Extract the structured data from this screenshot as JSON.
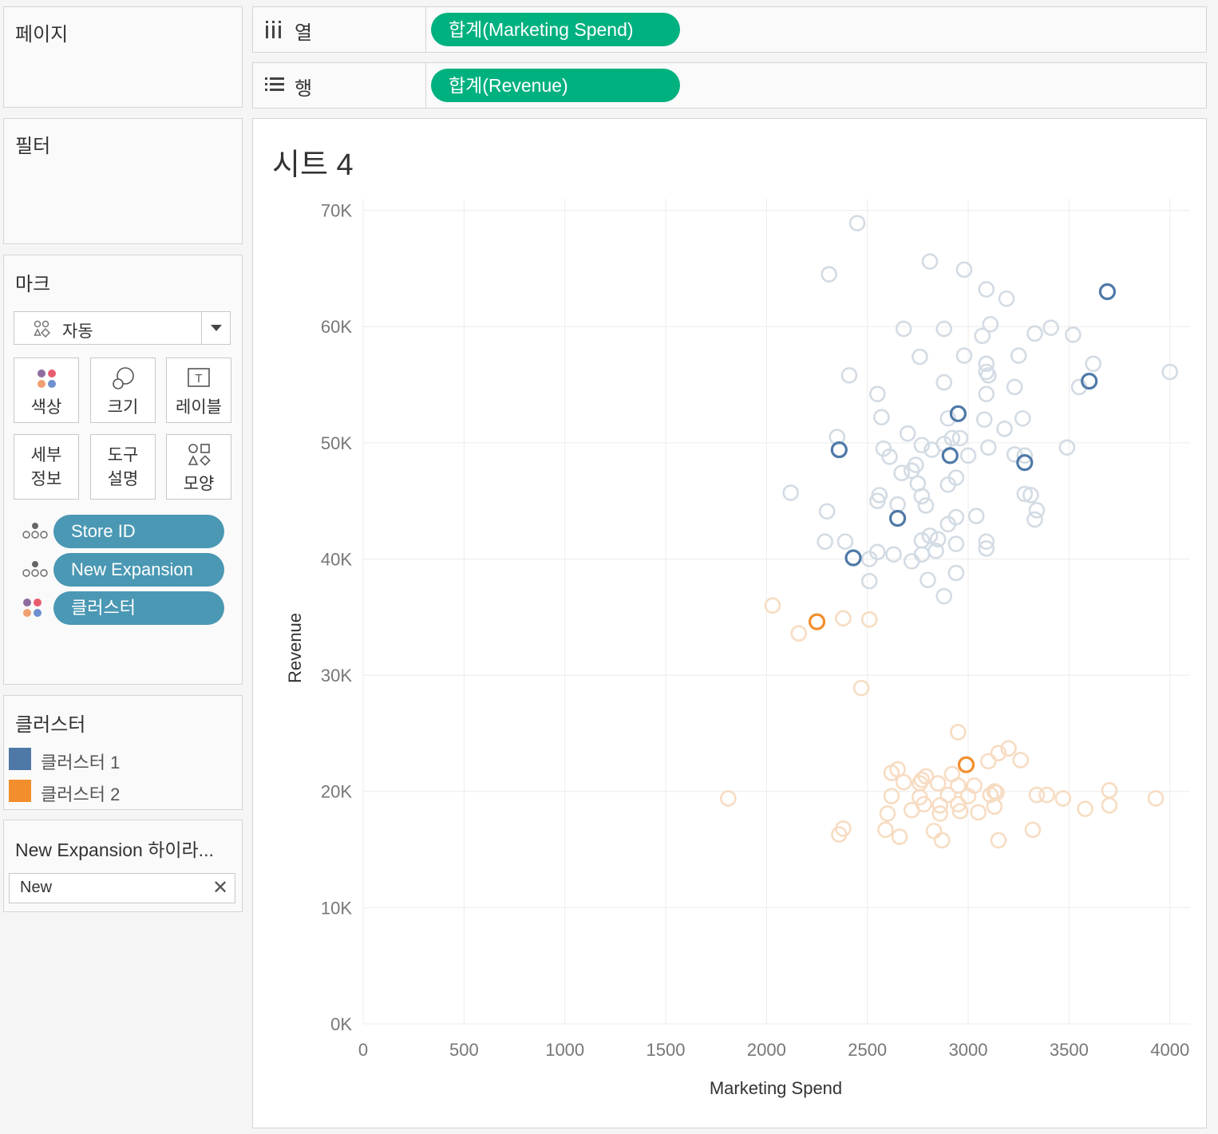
{
  "panels": {
    "pages_title": "페이지",
    "filters_title": "필터",
    "marks_title": "마크"
  },
  "shelves": {
    "columns_label": "열",
    "columns_pill": "합계(Marketing Spend)",
    "rows_label": "행",
    "rows_pill": "합계(Revenue)"
  },
  "marks": {
    "mark_type": "자동",
    "buttons": {
      "color": "색상",
      "size": "크기",
      "label": "레이블",
      "detail_line1": "세부",
      "detail_line2": "정보",
      "tooltip_line1": "도구",
      "tooltip_line2": "설명",
      "shape": "모양"
    },
    "fields": [
      {
        "name": "Store ID",
        "icon": "detail-icon"
      },
      {
        "name": "New Expansion",
        "icon": "detail-icon"
      },
      {
        "name": "클러스터",
        "icon": "color-icon"
      }
    ]
  },
  "legend": {
    "title": "클러스터",
    "items": [
      {
        "label": "클러스터 1",
        "color": "#4e79a7"
      },
      {
        "label": "클러스터 2",
        "color": "#f28e2b"
      }
    ]
  },
  "highlighter": {
    "title": "New Expansion 하이라...",
    "value": "New"
  },
  "sheet": {
    "title": "시트 4"
  },
  "colors": {
    "pill_green": "#00b180",
    "pill_blue": "#4a98b4",
    "cluster1": "#4e79a7",
    "cluster2": "#f28e2b",
    "cluster1_faded": "#d3dbe4",
    "cluster2_faded": "#f7dcc2"
  },
  "chart_data": {
    "type": "scatter",
    "xlabel": "Marketing Spend",
    "ylabel": "Revenue",
    "xlim": [
      0,
      4100
    ],
    "ylim": [
      0,
      71000
    ],
    "x_ticks": [
      0,
      500,
      1000,
      1500,
      2000,
      2500,
      3000,
      3500,
      4000
    ],
    "x_tick_labels": [
      "0",
      "500",
      "1000",
      "1500",
      "2000",
      "2500",
      "3000",
      "3500",
      "4000"
    ],
    "y_ticks": [
      0,
      10000,
      20000,
      30000,
      40000,
      50000,
      60000,
      70000
    ],
    "y_tick_labels": [
      "0K",
      "10K",
      "20K",
      "30K",
      "40K",
      "50K",
      "60K",
      "70K"
    ],
    "grid": true,
    "marker": "open-circle",
    "series": [
      {
        "name": "클러스터 1",
        "color": "#4e79a7",
        "highlighted": [
          [
            3690,
            63000
          ],
          [
            3600,
            55300
          ],
          [
            2950,
            52500
          ],
          [
            2360,
            49400
          ],
          [
            2910,
            48900
          ],
          [
            3280,
            48300
          ],
          [
            2650,
            43500
          ],
          [
            2430,
            40100
          ]
        ],
        "points": [
          [
            2450,
            68900
          ],
          [
            2310,
            64500
          ],
          [
            2810,
            65600
          ],
          [
            2980,
            64900
          ],
          [
            3090,
            63200
          ],
          [
            3190,
            62400
          ],
          [
            2680,
            59800
          ],
          [
            2880,
            59800
          ],
          [
            3110,
            60200
          ],
          [
            3070,
            59200
          ],
          [
            3330,
            59400
          ],
          [
            3410,
            59900
          ],
          [
            3520,
            59300
          ],
          [
            2760,
            57400
          ],
          [
            2980,
            57500
          ],
          [
            3090,
            56800
          ],
          [
            3090,
            56100
          ],
          [
            3100,
            55800
          ],
          [
            3250,
            57500
          ],
          [
            3620,
            56800
          ],
          [
            4000,
            56100
          ],
          [
            2410,
            55800
          ],
          [
            2880,
            55200
          ],
          [
            3090,
            54200
          ],
          [
            3230,
            54800
          ],
          [
            3550,
            54800
          ],
          [
            2550,
            54200
          ],
          [
            2570,
            52200
          ],
          [
            2900,
            52100
          ],
          [
            3080,
            52000
          ],
          [
            3180,
            51200
          ],
          [
            3270,
            52100
          ],
          [
            2350,
            50500
          ],
          [
            2580,
            49500
          ],
          [
            2700,
            50800
          ],
          [
            2770,
            49800
          ],
          [
            2880,
            49900
          ],
          [
            2920,
            50400
          ],
          [
            2960,
            50400
          ],
          [
            3100,
            49600
          ],
          [
            3230,
            49000
          ],
          [
            3490,
            49600
          ],
          [
            2610,
            48800
          ],
          [
            2740,
            48100
          ],
          [
            2820,
            49400
          ],
          [
            3000,
            48900
          ],
          [
            3280,
            48900
          ],
          [
            2120,
            45700
          ],
          [
            2560,
            45500
          ],
          [
            2670,
            47400
          ],
          [
            2720,
            47600
          ],
          [
            2750,
            46500
          ],
          [
            2900,
            46400
          ],
          [
            2940,
            47000
          ],
          [
            3280,
            45600
          ],
          [
            2550,
            45000
          ],
          [
            2650,
            44700
          ],
          [
            2770,
            45400
          ],
          [
            2790,
            44600
          ],
          [
            3310,
            45500
          ],
          [
            2300,
            44100
          ],
          [
            2900,
            43000
          ],
          [
            2940,
            43600
          ],
          [
            3040,
            43700
          ],
          [
            3340,
            44200
          ],
          [
            3330,
            43400
          ],
          [
            2290,
            41500
          ],
          [
            2390,
            41500
          ],
          [
            2770,
            41600
          ],
          [
            2810,
            42000
          ],
          [
            2850,
            41700
          ],
          [
            2940,
            41300
          ],
          [
            3090,
            41500
          ],
          [
            3090,
            40900
          ],
          [
            2550,
            40600
          ],
          [
            2630,
            40400
          ],
          [
            2770,
            40400
          ],
          [
            2510,
            40000
          ],
          [
            2720,
            39800
          ],
          [
            2840,
            40700
          ],
          [
            2940,
            38800
          ],
          [
            2800,
            38200
          ],
          [
            2510,
            38100
          ],
          [
            2880,
            36800
          ]
        ]
      },
      {
        "name": "클러스터 2",
        "color": "#f28e2b",
        "highlighted": [
          [
            2250,
            34600
          ],
          [
            2990,
            22300
          ]
        ],
        "points": [
          [
            2030,
            36000
          ],
          [
            2160,
            33600
          ],
          [
            2380,
            34900
          ],
          [
            2510,
            34800
          ],
          [
            2470,
            28900
          ],
          [
            2950,
            25100
          ],
          [
            3150,
            23300
          ],
          [
            3200,
            23700
          ],
          [
            3100,
            22600
          ],
          [
            3260,
            22700
          ],
          [
            2620,
            21600
          ],
          [
            2650,
            21900
          ],
          [
            2790,
            21300
          ],
          [
            2770,
            21000
          ],
          [
            2920,
            21500
          ],
          [
            2680,
            20800
          ],
          [
            2760,
            20700
          ],
          [
            2850,
            20700
          ],
          [
            2950,
            20500
          ],
          [
            3030,
            20500
          ],
          [
            3130,
            20000
          ],
          [
            2620,
            19600
          ],
          [
            2760,
            19500
          ],
          [
            2900,
            19700
          ],
          [
            3000,
            19600
          ],
          [
            3110,
            19700
          ],
          [
            3140,
            19900
          ],
          [
            1810,
            19400
          ],
          [
            3340,
            19700
          ],
          [
            3390,
            19700
          ],
          [
            3470,
            19400
          ],
          [
            3700,
            20100
          ],
          [
            2780,
            18900
          ],
          [
            2860,
            18800
          ],
          [
            2950,
            18900
          ],
          [
            3130,
            18700
          ],
          [
            3700,
            18800
          ],
          [
            3930,
            19400
          ],
          [
            2600,
            18100
          ],
          [
            2720,
            18400
          ],
          [
            2860,
            18100
          ],
          [
            2960,
            18300
          ],
          [
            3050,
            18200
          ],
          [
            3580,
            18500
          ],
          [
            2380,
            16800
          ],
          [
            2360,
            16300
          ],
          [
            2590,
            16700
          ],
          [
            2660,
            16100
          ],
          [
            2830,
            16600
          ],
          [
            2870,
            15800
          ],
          [
            3320,
            16700
          ],
          [
            3150,
            15800
          ]
        ]
      }
    ]
  }
}
